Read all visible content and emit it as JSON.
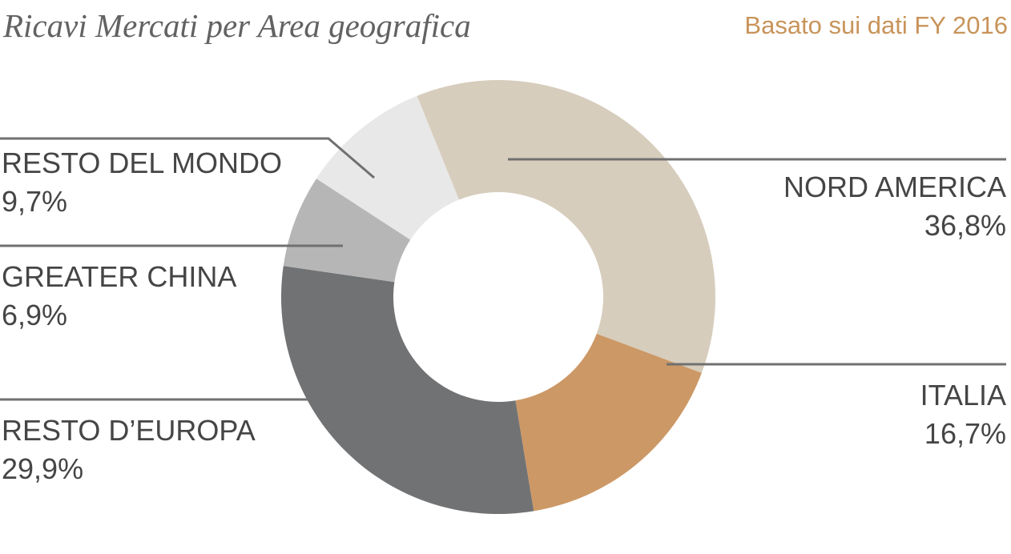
{
  "chart_data": {
    "type": "pie",
    "title": "Ricavi Mercati per Area geografica",
    "subtitle": "Basato sui dati FY 2016",
    "slices": [
      {
        "label": "NORD AMERICA",
        "value": 36.8,
        "value_label": "36,8%",
        "color": "#d7cdbd"
      },
      {
        "label": "ITALIA",
        "value": 16.7,
        "value_label": "16,7%",
        "color": "#cc9866"
      },
      {
        "label": "RESTO D’EUROPA",
        "value": 29.9,
        "value_label": "29,9%",
        "color": "#717274"
      },
      {
        "label": "GREATER CHINA",
        "value": 6.9,
        "value_label": "6,9%",
        "color": "#b6b6b6"
      },
      {
        "label": "RESTO DEL MONDO",
        "value": 9.7,
        "value_label": "9,7%",
        "color": "#e8e8e8"
      }
    ],
    "donut": true,
    "start": "top, clockwise",
    "leader_line_color": "#707070"
  }
}
